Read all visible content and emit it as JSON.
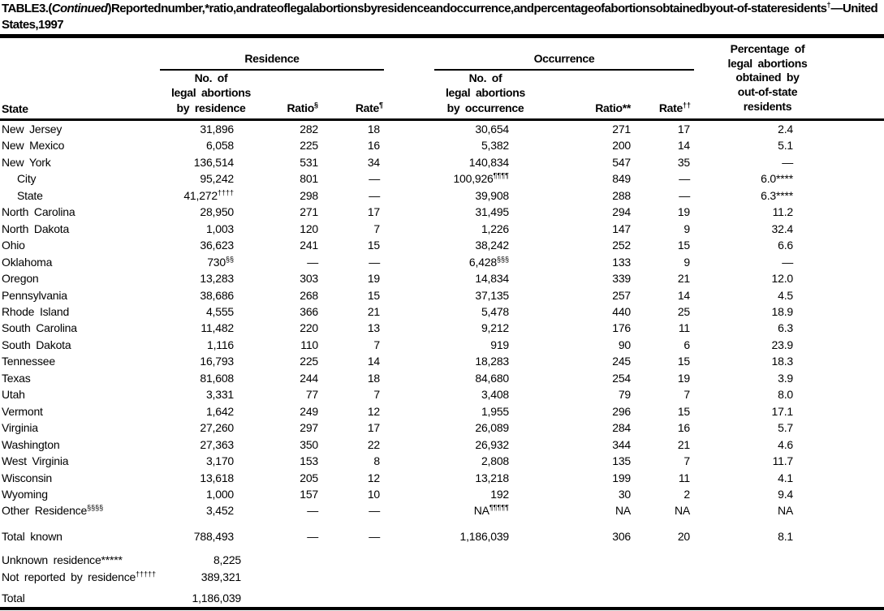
{
  "title": {
    "p1": "TABLE 3. (",
    "italic": "Continued",
    "p2": ") Reported number,* ratio, and rate of legal abortions by residence and occurrence, and percentage of abortions obtained by out-of-state residents^†^ — United States, 1997"
  },
  "header": {
    "state": "State",
    "residence": {
      "group": "Residence",
      "no": "No. of\nlegal abortions\nby residence",
      "ratio": "Ratio^§^",
      "rate": "Rate^¶^"
    },
    "occurrence": {
      "group": "Occurrence",
      "no": "No. of\nlegal abortions\nby occurrence",
      "ratio": "Ratio**",
      "rate": "Rate^††^"
    },
    "pct": "Percentage of\nlegal abortions\nobtained by\nout-of-state\nresidents"
  },
  "table": {
    "rows": [
      {
        "state": "New Jersey",
        "cells": [
          "31,896",
          "282",
          "18",
          "30,654",
          "271",
          "17",
          "2.4"
        ]
      },
      {
        "state": "New Mexico",
        "cells": [
          "6,058",
          "225",
          "16",
          "5,382",
          "200",
          "14",
          "5.1"
        ]
      },
      {
        "state": "New York",
        "cells": [
          "136,514",
          "531",
          "34",
          "140,834",
          "547",
          "35",
          "—"
        ]
      },
      {
        "state": "City",
        "indent": true,
        "cells": [
          "95,242",
          "801",
          "—",
          "100,926^¶¶¶¶^",
          "849",
          "—",
          "6.0****"
        ]
      },
      {
        "state": "State",
        "indent": true,
        "cells": [
          "41,272^††††^",
          "298",
          "—",
          "39,908",
          "288",
          "—",
          "6.3****"
        ]
      },
      {
        "state": "North Carolina",
        "cells": [
          "28,950",
          "271",
          "17",
          "31,495",
          "294",
          "19",
          "11.2"
        ]
      },
      {
        "state": "North Dakota",
        "cells": [
          "1,003",
          "120",
          "7",
          "1,226",
          "147",
          "9",
          "32.4"
        ]
      },
      {
        "state": "Ohio",
        "cells": [
          "36,623",
          "241",
          "15",
          "38,242",
          "252",
          "15",
          "6.6"
        ]
      },
      {
        "state": "Oklahoma",
        "cells": [
          "730^§§^",
          "—",
          "—",
          "6,428^§§§^",
          "133",
          "9",
          "—"
        ]
      },
      {
        "state": "Oregon",
        "cells": [
          "13,283",
          "303",
          "19",
          "14,834",
          "339",
          "21",
          "12.0"
        ]
      },
      {
        "state": "Pennsylvania",
        "cells": [
          "38,686",
          "268",
          "15",
          "37,135",
          "257",
          "14",
          "4.5"
        ]
      },
      {
        "state": "Rhode Island",
        "cells": [
          "4,555",
          "366",
          "21",
          "5,478",
          "440",
          "25",
          "18.9"
        ]
      },
      {
        "state": "South Carolina",
        "cells": [
          "11,482",
          "220",
          "13",
          "9,212",
          "176",
          "11",
          "6.3"
        ]
      },
      {
        "state": "South Dakota",
        "cells": [
          "1,116",
          "110",
          "7",
          "919",
          "90",
          "6",
          "23.9"
        ]
      },
      {
        "state": "Tennessee",
        "cells": [
          "16,793",
          "225",
          "14",
          "18,283",
          "245",
          "15",
          "18.3"
        ]
      },
      {
        "state": "Texas",
        "cells": [
          "81,608",
          "244",
          "18",
          "84,680",
          "254",
          "19",
          "3.9"
        ]
      },
      {
        "state": "Utah",
        "cells": [
          "3,331",
          "77",
          "7",
          "3,408",
          "79",
          "7",
          "8.0"
        ]
      },
      {
        "state": "Vermont",
        "cells": [
          "1,642",
          "249",
          "12",
          "1,955",
          "296",
          "15",
          "17.1"
        ]
      },
      {
        "state": "Virginia",
        "cells": [
          "27,260",
          "297",
          "17",
          "26,089",
          "284",
          "16",
          "5.7"
        ]
      },
      {
        "state": "Washington",
        "cells": [
          "27,363",
          "350",
          "22",
          "26,932",
          "344",
          "21",
          "4.6"
        ]
      },
      {
        "state": "West Virginia",
        "cells": [
          "3,170",
          "153",
          "8",
          "2,808",
          "135",
          "7",
          "11.7"
        ]
      },
      {
        "state": "Wisconsin",
        "cells": [
          "13,618",
          "205",
          "12",
          "13,218",
          "199",
          "11",
          "4.1"
        ]
      },
      {
        "state": "Wyoming",
        "cells": [
          "1,000",
          "157",
          "10",
          "192",
          "30",
          "2",
          "9.4"
        ]
      },
      {
        "state": "Other Residence^§§§§^",
        "cells": [
          "3,452",
          "—",
          "—",
          "NA^¶¶¶¶¶^",
          "NA",
          "NA",
          "NA"
        ]
      }
    ],
    "total_known": {
      "state": "Total known",
      "cells": [
        "788,493",
        "—",
        "—",
        "1,186,039",
        "306",
        "20",
        "8.1"
      ]
    },
    "footer_rows": [
      {
        "state": "Unknown residence*****",
        "cells": [
          "8,225"
        ]
      },
      {
        "state": "Not reported by residence^†††††^",
        "cells": [
          "389,321"
        ]
      }
    ],
    "total": {
      "state": "Total",
      "cells": [
        "1,186,039"
      ]
    }
  }
}
